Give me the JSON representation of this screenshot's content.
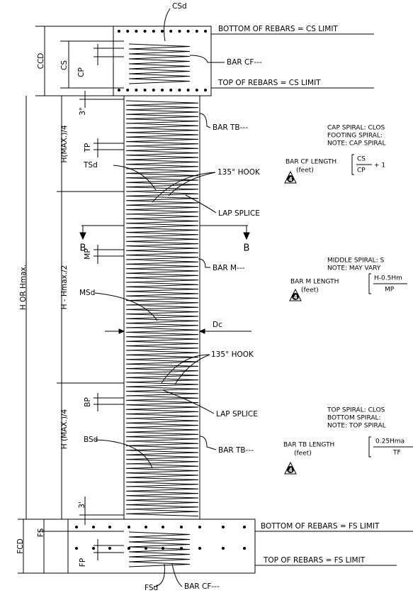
{
  "cap": {
    "csd": "CSd",
    "bottom_limit": "BOTTOM OF REBARS = CS LIMIT",
    "ccd": "CCD",
    "cs": "CS",
    "cp": "CP",
    "bar": "BAR CF---",
    "top_limit": "TOP OF REBARS = CS LIMIT"
  },
  "column": {
    "clear_top": "3\"",
    "bar_top": "BAR TB---",
    "tp": "TP",
    "top_zone": "H(MAX.)/4",
    "tsd": "TSd",
    "hook_top": "135° HOOK",
    "lap_top": "LAP SPLICE",
    "section_left": "B",
    "section_right": "B",
    "mp": "MP",
    "middle_zone": "H - Hmax./2",
    "total": "H OR Hmax.",
    "bar_middle": "BAR M---",
    "msd": "MSd",
    "dc": "Dc",
    "hook_bottom": "135° HOOK",
    "bp": "BP",
    "bottom_zone": "H (MAX.)/4",
    "lap_bottom": "LAP SPLICE",
    "bsd": "BSd",
    "bar_bottom": "BAR TB---",
    "clear_bottom": "3'"
  },
  "footing": {
    "bottom_limit": "BOTTOM OF REBARS = FS LIMIT",
    "fcd": "FCD",
    "fs": "FS",
    "fp": "FP",
    "top_limit": "TOP OF REBARS = FS LIMIT",
    "fsd": "FSd",
    "bar": "BAR CF---"
  },
  "notes": {
    "cap": {
      "lines": [
        "CAP SPIRAL: CLOS",
        "FOOTING SPIRAL:",
        "NOTE: CAP SPIRAL"
      ],
      "formula_label": "BAR CF LENGTH",
      "unit": "(feet)",
      "numerator": "CS",
      "denominator": "CP",
      "tail": "+ 1",
      "badge": "4"
    },
    "middle": {
      "lines": [
        "MIDDLE SPIRAL: S",
        "NOTE: MAY VARY"
      ],
      "formula_label": "BAR M LENGTH",
      "unit": "(feet)",
      "numerator": "H-0.5Hm",
      "denominator": "MP",
      "badge": "4"
    },
    "top": {
      "lines": [
        "TOP SPIRAL: CLOS",
        "BOTTOM SPIRAL:",
        "NOTE: TOP SPIRAL"
      ],
      "formula_label": "BAR TB LENGTH",
      "unit": "(feet)",
      "numerator": "0.25Hma",
      "denominator": "TF",
      "badge": "4"
    }
  }
}
